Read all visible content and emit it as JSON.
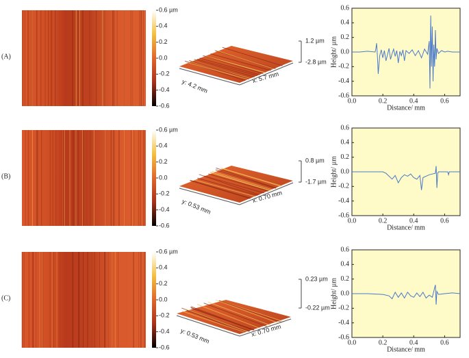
{
  "chart_data": [
    {
      "type": "line",
      "label": "(A)",
      "colorbar_lim": [
        -0.6,
        0.6
      ],
      "colorbar_ticks": [
        {
          "value": 0.6,
          "label": "0.6 µm"
        },
        0.4,
        0.2,
        {
          "value": 0,
          "label": "0.0"
        },
        -0.2,
        -0.4,
        -0.6
      ],
      "surface_labels": {
        "y": "y: 4.2 mm",
        "x": "x: 5.7 mm",
        "top": "1.2 µm",
        "bottom": "-2.8 µm"
      },
      "xlabel": "Distance/ mm",
      "ylabel": "Height/ µm",
      "color": "#4a78c8",
      "xlim": [
        0,
        0.7
      ],
      "ylim": [
        -0.6,
        0.6
      ],
      "xticks": [
        {
          "value": 0,
          "label": "0.0"
        },
        0.2,
        0.4,
        0.6
      ],
      "yticks": [
        0.6,
        0.4,
        0.2,
        {
          "value": 0,
          "label": "0.0"
        },
        -0.2,
        -0.4,
        -0.6
      ],
      "x": [
        0,
        0.05,
        0.1,
        0.15,
        0.155,
        0.16,
        0.165,
        0.17,
        0.18,
        0.19,
        0.2,
        0.21,
        0.22,
        0.23,
        0.24,
        0.25,
        0.26,
        0.27,
        0.28,
        0.29,
        0.3,
        0.31,
        0.32,
        0.33,
        0.34,
        0.35,
        0.37,
        0.39,
        0.41,
        0.43,
        0.45,
        0.47,
        0.49,
        0.5,
        0.505,
        0.51,
        0.515,
        0.52,
        0.525,
        0.53,
        0.535,
        0.54,
        0.545,
        0.55,
        0.56,
        0.58,
        0.6,
        0.62,
        0.65,
        0.7
      ],
      "y": [
        0,
        0,
        0.01,
        0,
        0.05,
        0.12,
        -0.05,
        -0.3,
        -0.05,
        0.03,
        -0.08,
        0.02,
        -0.12,
        -0.04,
        0.05,
        -0.1,
        -0.02,
        0.04,
        -0.06,
        0.02,
        -0.15,
        0.01,
        -0.05,
        0.03,
        -0.12,
        0.02,
        -0.02,
        0.03,
        -0.05,
        0.02,
        -0.08,
        0.04,
        -0.03,
        0.15,
        -0.5,
        0.5,
        -0.2,
        0.35,
        -0.4,
        0.1,
        -0.2,
        0.3,
        -0.1,
        0.05,
        -0.02,
        0.02,
        0,
        0.01,
        0,
        0
      ]
    },
    {
      "type": "line",
      "label": "(B)",
      "colorbar_lim": [
        -0.6,
        0.6
      ],
      "colorbar_ticks": [
        {
          "value": 0.6,
          "label": "0.6 µm"
        },
        0.4,
        0.2,
        {
          "value": 0,
          "label": "0.0"
        },
        -0.2,
        -0.4,
        -0.6
      ],
      "surface_labels": {
        "y": "y: 0.53 mm",
        "x": "x: 0.70 mm",
        "top": "0.8 µm",
        "bottom": "-1.7 µm"
      },
      "xlabel": "Distance/ mm",
      "ylabel": "Height/ µm",
      "color": "#4a78c8",
      "xlim": [
        0,
        0.7
      ],
      "ylim": [
        -0.6,
        0.6
      ],
      "xticks": [
        {
          "value": 0,
          "label": "0.0"
        },
        0.2,
        0.4,
        0.6
      ],
      "yticks": [
        0.6,
        0.4,
        0.2,
        {
          "value": 0,
          "label": "0.0"
        },
        -0.2,
        -0.4,
        -0.6
      ],
      "x": [
        0,
        0.1,
        0.2,
        0.22,
        0.24,
        0.26,
        0.28,
        0.3,
        0.32,
        0.34,
        0.36,
        0.38,
        0.4,
        0.42,
        0.44,
        0.45,
        0.46,
        0.48,
        0.5,
        0.52,
        0.54,
        0.545,
        0.55,
        0.555,
        0.56,
        0.6,
        0.62,
        0.625,
        0.63,
        0.7
      ],
      "y": [
        0,
        0,
        0,
        -0.02,
        -0.06,
        -0.1,
        -0.05,
        -0.15,
        -0.08,
        -0.04,
        -0.06,
        -0.03,
        -0.08,
        -0.1,
        -0.05,
        -0.25,
        -0.08,
        -0.06,
        -0.04,
        -0.03,
        -0.02,
        0.08,
        -0.22,
        -0.02,
        0,
        0,
        0,
        -0.04,
        0,
        0
      ]
    },
    {
      "type": "line",
      "label": "(C)",
      "colorbar_lim": [
        -0.6,
        0.6
      ],
      "colorbar_ticks": [
        {
          "value": 0.6,
          "label": "0.6 µm"
        },
        0.4,
        0.2,
        {
          "value": 0,
          "label": "0.0"
        },
        -0.2,
        -0.4,
        -0.6
      ],
      "surface_labels": {
        "y": "y: 0.53 mm",
        "x": "x: 0.70 mm",
        "top": "0.23 µm",
        "bottom": "-0.22 µm"
      },
      "xlabel": "Distance/ mm",
      "ylabel": "Height/ µm",
      "color": "#4a78c8",
      "xlim": [
        0,
        0.7
      ],
      "ylim": [
        -0.6,
        0.6
      ],
      "xticks": [
        {
          "value": 0,
          "label": "0.0"
        },
        0.2,
        0.4,
        0.6
      ],
      "yticks": [
        0.6,
        0.4,
        0.2,
        {
          "value": 0,
          "label": "0.0"
        },
        -0.2,
        -0.4,
        -0.6
      ],
      "x": [
        0,
        0.1,
        0.2,
        0.24,
        0.26,
        0.28,
        0.3,
        0.32,
        0.34,
        0.36,
        0.38,
        0.4,
        0.42,
        0.44,
        0.46,
        0.48,
        0.5,
        0.52,
        0.54,
        0.545,
        0.55,
        0.56,
        0.6,
        0.65,
        0.7
      ],
      "y": [
        0,
        0,
        -0.01,
        -0.03,
        -0.07,
        0.02,
        -0.05,
        0.01,
        -0.06,
        0.02,
        -0.03,
        -0.05,
        0.01,
        -0.04,
        0.02,
        -0.06,
        -0.02,
        -0.05,
        0.12,
        -0.15,
        0.03,
        -0.01,
        0,
        0.01,
        0
      ]
    }
  ]
}
